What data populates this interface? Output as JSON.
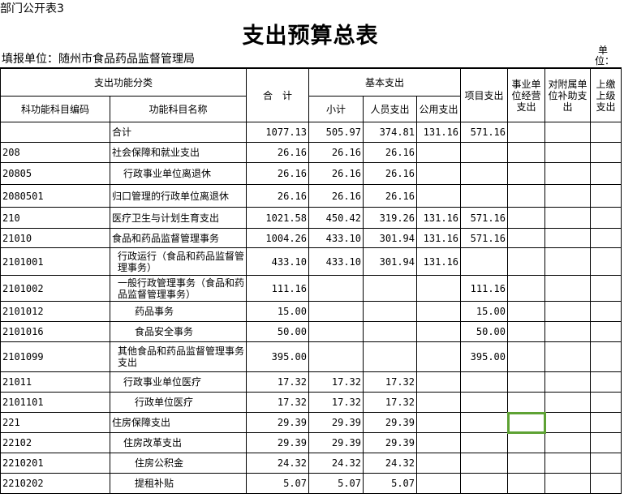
{
  "form_tag": "部门公开表3",
  "title": "支出预算总表",
  "reporting_unit": "填报单位：随州市食品药品监督管理局",
  "unit_label": "单位：",
  "headers": {
    "category": "支出功能分类",
    "code": "科功能科目编码",
    "name": "功能科目名称",
    "total": "合　计",
    "basic": "基本支出",
    "subtotal": "小计",
    "personnel": "人员支出",
    "public": "公用支出",
    "project": "项目支出",
    "business": "事业单位经营支出",
    "subsidiary": "对附属单位补助支出",
    "upper": "上缴上级支出"
  },
  "selected_cell_color": "#5ea234",
  "rows": [
    {
      "code": "",
      "name": "合计",
      "indent": 0,
      "total": "1077.13",
      "subtotal": "505.97",
      "personnel": "374.81",
      "public": "131.16",
      "project": "571.16"
    },
    {
      "code": "208",
      "name": "社会保障和就业支出",
      "indent": 0,
      "total": "26.16",
      "subtotal": "26.16",
      "personnel": "26.16",
      "public": "",
      "project": ""
    },
    {
      "code": "20805",
      "name": "行政事业单位离退休",
      "indent": 1,
      "total": "26.16",
      "subtotal": "26.16",
      "personnel": "26.16",
      "public": "",
      "project": ""
    },
    {
      "code": "2080501",
      "name": "归口管理的行政单位离退休",
      "indent": 0,
      "total": "26.16",
      "subtotal": "26.16",
      "personnel": "26.16",
      "public": "",
      "project": ""
    },
    {
      "code": "210",
      "name": "医疗卫生与计划生育支出",
      "indent": 0,
      "total": "1021.58",
      "subtotal": "450.42",
      "personnel": "319.26",
      "public": "131.16",
      "project": "571.16"
    },
    {
      "code": "21010",
      "name": "食品和药品监督管理事务",
      "indent": 0,
      "total": "1004.26",
      "subtotal": "433.10",
      "personnel": "301.94",
      "public": "131.16",
      "project": "571.16"
    },
    {
      "code": "2101001",
      "name": "行政运行（食品和药品监督管理事务）",
      "indent": 0.5,
      "total": "433.10",
      "subtotal": "433.10",
      "personnel": "301.94",
      "public": "131.16",
      "project": ""
    },
    {
      "code": "2101002",
      "name": "一般行政管理事务（食品和药品监督管理事务）",
      "indent": 0.5,
      "total": "111.16",
      "subtotal": "",
      "personnel": "",
      "public": "",
      "project": "111.16"
    },
    {
      "code": "2101012",
      "name": "药品事务",
      "indent": 2,
      "total": "15.00",
      "subtotal": "",
      "personnel": "",
      "public": "",
      "project": "15.00"
    },
    {
      "code": "2101016",
      "name": "食品安全事务",
      "indent": 2,
      "total": "50.00",
      "subtotal": "",
      "personnel": "",
      "public": "",
      "project": "50.00"
    },
    {
      "code": "2101099",
      "name": "其他食品和药品监督管理事务支出",
      "indent": 0.5,
      "total": "395.00",
      "subtotal": "",
      "personnel": "",
      "public": "",
      "project": "395.00"
    },
    {
      "code": "21011",
      "name": "行政事业单位医疗",
      "indent": 1,
      "total": "17.32",
      "subtotal": "17.32",
      "personnel": "17.32",
      "public": "",
      "project": ""
    },
    {
      "code": "2101101",
      "name": "行政单位医疗",
      "indent": 2,
      "total": "17.32",
      "subtotal": "17.32",
      "personnel": "17.32",
      "public": "",
      "project": ""
    },
    {
      "code": "221",
      "name": "住房保障支出",
      "indent": 0,
      "total": "29.39",
      "subtotal": "29.39",
      "personnel": "29.39",
      "public": "",
      "project": ""
    },
    {
      "code": "22102",
      "name": "住房改革支出",
      "indent": 1,
      "total": "29.39",
      "subtotal": "29.39",
      "personnel": "29.39",
      "public": "",
      "project": ""
    },
    {
      "code": "2210201",
      "name": "住房公积金",
      "indent": 2,
      "total": "24.32",
      "subtotal": "24.32",
      "personnel": "24.32",
      "public": "",
      "project": ""
    },
    {
      "code": "2210202",
      "name": "提租补贴",
      "indent": 2,
      "total": "5.07",
      "subtotal": "5.07",
      "personnel": "5.07",
      "public": "",
      "project": ""
    }
  ]
}
